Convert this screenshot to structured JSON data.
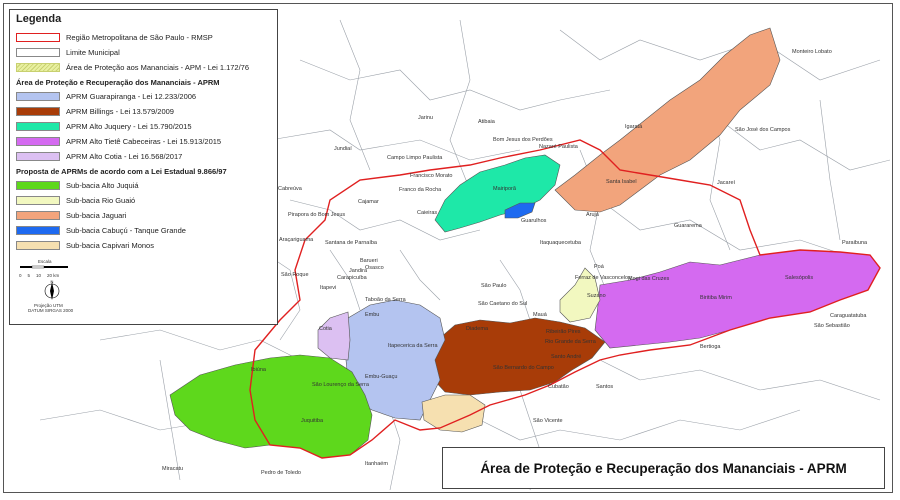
{
  "legend": {
    "title": "Legenda",
    "base_items": [
      {
        "label": "Região Metropolitana de São Paulo - RMSP",
        "fill": "#ffffff",
        "stroke": "#e02020"
      },
      {
        "label": "Limite Municipal",
        "fill": "#ffffff",
        "stroke": "#888888"
      },
      {
        "label": "Área de Proteção aos Mananciais - APM - Lei 1.172/76",
        "fill": "#e8f0a0",
        "stroke": "#c8d070"
      }
    ],
    "aprm_header": "Área de Proteção e Recuperação dos Mananciais - APRM",
    "aprm_items": [
      {
        "label": "APRM Guarapiranga - Lei 12.233/2006",
        "fill": "#b4c4f0"
      },
      {
        "label": "APRM Billings - Lei 13.579/2009",
        "fill": "#a83c08"
      },
      {
        "label": "APRM Alto Juquery - Lei 15.790/2015",
        "fill": "#1ee8a8"
      },
      {
        "label": "APRM Alto Tietê Cabeceiras - Lei 15.913/2015",
        "fill": "#d46af0"
      },
      {
        "label": "APRM Alto Cotia - Lei 16.568/2017",
        "fill": "#dcc0f2"
      }
    ],
    "prop_header": "Proposta de APRMs de acordo com a Lei Estadual 9.866/97",
    "prop_items": [
      {
        "label": "Sub-bacia Alto Juquiá",
        "fill": "#5ed81c"
      },
      {
        "label": "Sub-bacia Rio Guaió",
        "fill": "#f2f8c0"
      },
      {
        "label": "Sub-bacia Jaguari",
        "fill": "#f2a47c"
      },
      {
        "label": "Sub-bacia Cabuçú - Tanque Grande",
        "fill": "#1e6af0"
      },
      {
        "label": "Sub-bacia Capivari Monos",
        "fill": "#f6e0b0"
      }
    ],
    "scale_label": "Escala",
    "scale_ticks": [
      "0",
      "5",
      "10",
      "20 km"
    ],
    "north_label": "N",
    "projection": "Projeção UTM",
    "datum": "DATUM SIRGAS 2000"
  },
  "map_title": "Área de Proteção e Recuperação dos Mananciais - APRM",
  "cities": [
    {
      "name": "Monteiro Lobato",
      "color": "#333"
    },
    {
      "name": "Jarinu",
      "color": "#333"
    },
    {
      "name": "Atibaia",
      "color": "#333"
    },
    {
      "name": "Bom Jesus dos Perdões",
      "color": "#333"
    },
    {
      "name": "Nazaré Paulista",
      "color": "#333"
    },
    {
      "name": "Igaratá",
      "color": "#333"
    },
    {
      "name": "São José dos Campos",
      "color": "#333"
    },
    {
      "name": "Jundiaí",
      "color": "#333"
    },
    {
      "name": "Campo Limpo Paulista",
      "color": "#333"
    },
    {
      "name": "Francisco Morato",
      "color": "#333"
    },
    {
      "name": "Mairiporã",
      "color": "#333"
    },
    {
      "name": "Franco da Rocha",
      "color": "#333"
    },
    {
      "name": "Santa Isabel",
      "color": "#333"
    },
    {
      "name": "Jacareí",
      "color": "#333"
    },
    {
      "name": "Cabreúva",
      "color": "#333"
    },
    {
      "name": "Cajamar",
      "color": "#333"
    },
    {
      "name": "Arujá",
      "color": "#333"
    },
    {
      "name": "Pirapora do Bom Jesus",
      "color": "#333"
    },
    {
      "name": "Caieiras",
      "color": "#333"
    },
    {
      "name": "Guarulhos",
      "color": "#333"
    },
    {
      "name": "Guararema",
      "color": "#333"
    },
    {
      "name": "Araçariguama",
      "color": "#333"
    },
    {
      "name": "Santana de Parnaíba",
      "color": "#333"
    },
    {
      "name": "Itaquaquecetuba",
      "color": "#333"
    },
    {
      "name": "Paraibuna",
      "color": "#333"
    },
    {
      "name": "Barueri",
      "color": "#333"
    },
    {
      "name": "Osasco",
      "color": "#333"
    },
    {
      "name": "Poá",
      "color": "#333"
    },
    {
      "name": "São Roque",
      "color": "#333"
    },
    {
      "name": "Jandira",
      "color": "#333"
    },
    {
      "name": "Carapicuíba",
      "color": "#333"
    },
    {
      "name": "Ferraz de Vasconcelos",
      "color": "#333"
    },
    {
      "name": "Mogi das Cruzes",
      "color": "#333"
    },
    {
      "name": "Salesópolis",
      "color": "#333"
    },
    {
      "name": "Itapevi",
      "color": "#333"
    },
    {
      "name": "São Paulo",
      "color": "#333"
    },
    {
      "name": "Suzano",
      "color": "#333"
    },
    {
      "name": "Biritiba Mirim",
      "color": "#333"
    },
    {
      "name": "Caraguatatuba",
      "color": "#333"
    },
    {
      "name": "Taboão da Serra",
      "color": "#333"
    },
    {
      "name": "São Caetano do Sul",
      "color": "#333"
    },
    {
      "name": "Embu",
      "color": "#333"
    },
    {
      "name": "Mauá",
      "color": "#333"
    },
    {
      "name": "Ribeirão Pires",
      "color": "#333"
    },
    {
      "name": "São Sebastião",
      "color": "#333"
    },
    {
      "name": "Cotia",
      "color": "#333"
    },
    {
      "name": "Diadema",
      "color": "#333"
    },
    {
      "name": "Itapecerica da Serra",
      "color": "#333"
    },
    {
      "name": "Rio Grande da Serra",
      "color": "#333"
    },
    {
      "name": "Santo André",
      "color": "#333"
    },
    {
      "name": "Bertioga",
      "color": "#333"
    },
    {
      "name": "Embu-Guaçu",
      "color": "#333"
    },
    {
      "name": "Ibiúna",
      "color": "#333"
    },
    {
      "name": "São Lourenço da Serra",
      "color": "#333"
    },
    {
      "name": "São Bernardo do Campo",
      "color": "#333"
    },
    {
      "name": "Cubatão",
      "color": "#333"
    },
    {
      "name": "Santos",
      "color": "#333"
    },
    {
      "name": "Juquitiba",
      "color": "#333"
    },
    {
      "name": "São Vicente",
      "color": "#333"
    },
    {
      "name": "Itanhaém",
      "color": "#333"
    },
    {
      "name": "Miracatu",
      "color": "#333"
    },
    {
      "name": "Pedro de Toledo",
      "color": "#333"
    }
  ]
}
